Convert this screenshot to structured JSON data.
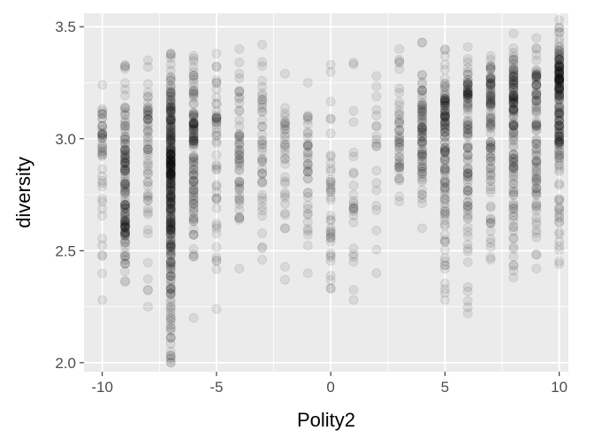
{
  "chart_data": {
    "type": "scatter",
    "title": "",
    "xlabel": "Polity2",
    "ylabel": "diversity",
    "xlim": [
      -10.8,
      10.4
    ],
    "ylim": [
      1.96,
      3.56
    ],
    "x_ticks": [
      -10,
      -5,
      0,
      5,
      10
    ],
    "x_tick_labels": [
      "-10",
      "-5",
      "0",
      "5",
      "10"
    ],
    "y_ticks": [
      2.0,
      2.5,
      3.0,
      3.5
    ],
    "y_tick_labels": [
      "2.0",
      "2.5",
      "3.0",
      "3.5"
    ],
    "grid": true,
    "panel_color": "#ebebeb",
    "point_color": "#000000",
    "point_alpha": 0.08,
    "x": [
      -10,
      -9,
      -8,
      -7,
      -6,
      -5,
      -4,
      -3,
      -2,
      -1,
      0,
      1,
      2,
      3,
      4,
      5,
      6,
      7,
      8,
      9,
      10
    ],
    "y_min": [
      2.28,
      2.36,
      2.25,
      2.0,
      2.2,
      2.24,
      2.42,
      2.46,
      2.37,
      2.4,
      2.33,
      2.28,
      2.4,
      2.72,
      2.6,
      2.28,
      2.22,
      2.46,
      2.38,
      2.42,
      2.44
    ],
    "y_max": [
      3.24,
      3.33,
      3.35,
      3.38,
      3.37,
      3.38,
      3.4,
      3.42,
      3.29,
      3.25,
      3.33,
      3.34,
      3.28,
      3.4,
      3.43,
      3.4,
      3.41,
      3.37,
      3.47,
      3.45,
      3.53
    ],
    "y_center": [
      3.0,
      2.72,
      3.02,
      2.85,
      3.0,
      3.05,
      3.0,
      2.95,
      2.95,
      2.95,
      2.65,
      2.8,
      2.95,
      3.0,
      3.05,
      3.05,
      3.15,
      3.15,
      3.15,
      3.15,
      3.22
    ],
    "n_points": [
      45,
      140,
      60,
      340,
      120,
      50,
      55,
      45,
      35,
      40,
      40,
      25,
      20,
      45,
      80,
      130,
      110,
      100,
      140,
      100,
      190
    ]
  }
}
